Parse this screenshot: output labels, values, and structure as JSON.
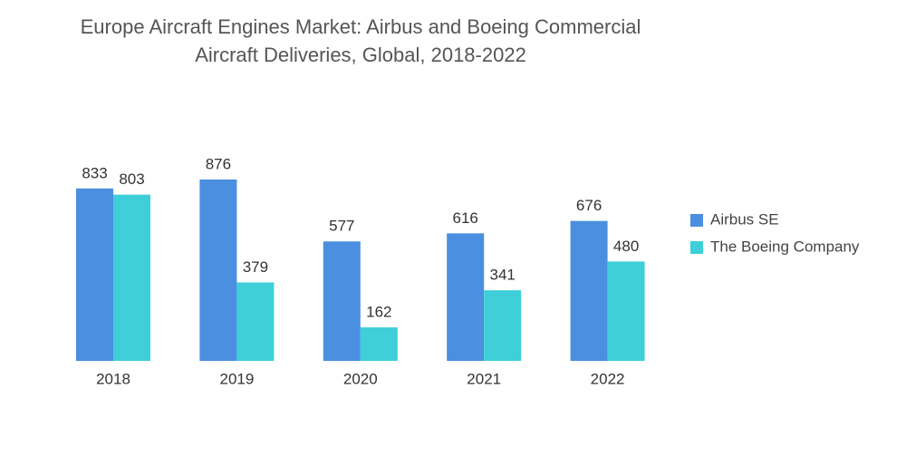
{
  "chart_data": {
    "type": "bar",
    "title": [
      "Europe Aircraft Engines Market: Airbus and Boeing Commercial",
      "Aircraft Deliveries, Global, 2018-2022"
    ],
    "categories": [
      "2018",
      "2019",
      "2020",
      "2021",
      "2022"
    ],
    "series": [
      {
        "name": "Airbus SE",
        "color": "#4a8fe0",
        "values": [
          833,
          876,
          577,
          616,
          676
        ]
      },
      {
        "name": "The Boeing Company",
        "color": "#3ecfd9",
        "values": [
          803,
          379,
          162,
          341,
          480
        ]
      }
    ],
    "legend": "right"
  }
}
